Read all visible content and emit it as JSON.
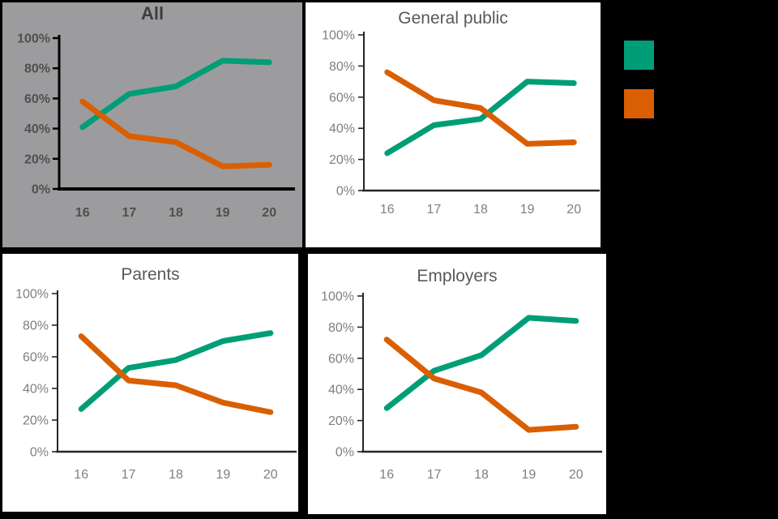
{
  "figure": {
    "background": "#000000",
    "description_titles": [
      "All",
      "General public",
      "Parents",
      "Employers"
    ]
  },
  "legend": {
    "swatches": [
      {
        "id": "green-series",
        "color": "#009E77"
      },
      {
        "id": "orange-series",
        "color": "#D95F02"
      }
    ]
  },
  "chart_data": [
    {
      "type": "line",
      "title": "All",
      "panel_background": "#9C9C9E",
      "categories": [
        "16",
        "17",
        "18",
        "19",
        "20"
      ],
      "series": [
        {
          "name": "green",
          "color": "#009E77",
          "values": [
            41,
            63,
            68,
            85,
            84
          ]
        },
        {
          "name": "orange",
          "color": "#D95F02",
          "values": [
            58,
            35,
            31,
            15,
            16
          ]
        }
      ],
      "ylim": [
        0,
        100
      ],
      "ytick_labels": [
        "0%",
        "20%",
        "40%",
        "60%",
        "80%",
        "100%"
      ],
      "grid": false,
      "legend_position": "none"
    },
    {
      "type": "line",
      "title": "General public",
      "panel_background": "#FFFFFF",
      "categories": [
        "16",
        "17",
        "18",
        "19",
        "20"
      ],
      "series": [
        {
          "name": "green",
          "color": "#009E77",
          "values": [
            24,
            42,
            46,
            70,
            69
          ]
        },
        {
          "name": "orange",
          "color": "#D95F02",
          "values": [
            76,
            58,
            53,
            30,
            31
          ]
        }
      ],
      "ylim": [
        0,
        100
      ],
      "ytick_labels": [
        "0%",
        "20%",
        "40%",
        "60%",
        "80%",
        "100%"
      ],
      "grid": false,
      "legend_position": "none"
    },
    {
      "type": "line",
      "title": "Parents",
      "panel_background": "#FFFFFF",
      "categories": [
        "16",
        "17",
        "18",
        "19",
        "20"
      ],
      "series": [
        {
          "name": "green",
          "color": "#009E77",
          "values": [
            27,
            53,
            58,
            70,
            75
          ]
        },
        {
          "name": "orange",
          "color": "#D95F02",
          "values": [
            73,
            45,
            42,
            31,
            25
          ]
        }
      ],
      "ylim": [
        0,
        100
      ],
      "ytick_labels": [
        "0%",
        "20%",
        "40%",
        "60%",
        "80%",
        "100%"
      ],
      "grid": false,
      "legend_position": "none"
    },
    {
      "type": "line",
      "title": "Employers",
      "panel_background": "#FFFFFF",
      "categories": [
        "16",
        "17",
        "18",
        "19",
        "20"
      ],
      "series": [
        {
          "name": "green",
          "color": "#009E77",
          "values": [
            28,
            52,
            62,
            86,
            84
          ]
        },
        {
          "name": "orange",
          "color": "#D95F02",
          "values": [
            72,
            47,
            38,
            14,
            16
          ]
        }
      ],
      "ylim": [
        0,
        100
      ],
      "ytick_labels": [
        "0%",
        "20%",
        "40%",
        "60%",
        "80%",
        "100%"
      ],
      "grid": false,
      "legend_position": "none"
    }
  ]
}
